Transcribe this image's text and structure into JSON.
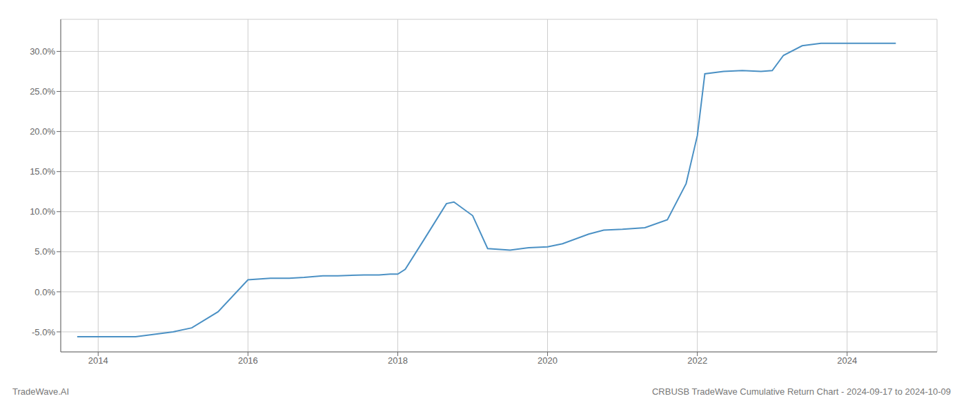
{
  "chart_data": {
    "type": "line",
    "x": [
      2013.72,
      2014.0,
      2014.5,
      2015.0,
      2015.25,
      2015.6,
      2016.0,
      2016.3,
      2016.55,
      2016.75,
      2017.0,
      2017.2,
      2017.55,
      2017.75,
      2017.9,
      2018.0,
      2018.1,
      2018.35,
      2018.65,
      2018.75,
      2019.0,
      2019.2,
      2019.5,
      2019.75,
      2020.0,
      2020.2,
      2020.55,
      2020.75,
      2021.0,
      2021.3,
      2021.6,
      2021.85,
      2022.0,
      2022.1,
      2022.35,
      2022.6,
      2022.85,
      2023.0,
      2023.15,
      2023.4,
      2023.65,
      2023.85,
      2024.0,
      2024.3,
      2024.65
    ],
    "values": [
      -5.6,
      -5.6,
      -5.6,
      -5.0,
      -4.5,
      -2.5,
      1.5,
      1.7,
      1.7,
      1.8,
      2.0,
      2.0,
      2.1,
      2.1,
      2.2,
      2.2,
      2.8,
      6.5,
      11.0,
      11.2,
      9.5,
      5.4,
      5.2,
      5.5,
      5.6,
      6.0,
      7.2,
      7.7,
      7.8,
      8.0,
      9.0,
      13.5,
      19.5,
      27.2,
      27.5,
      27.6,
      27.5,
      27.6,
      29.5,
      30.7,
      31.0,
      31.0,
      31.0,
      31.0,
      31.0
    ],
    "color": "#4a90c4",
    "xlim": [
      2013.5,
      2025.2
    ],
    "ylim": [
      -7.5,
      34.0
    ],
    "xticks": [
      2014,
      2016,
      2018,
      2020,
      2022,
      2024
    ],
    "yticks": [
      {
        "value": -5.0,
        "label": "-5.0%"
      },
      {
        "value": 0.0,
        "label": "0.0%"
      },
      {
        "value": 5.0,
        "label": "5.0%"
      },
      {
        "value": 10.0,
        "label": "10.0%"
      },
      {
        "value": 15.0,
        "label": "15.0%"
      },
      {
        "value": 20.0,
        "label": "20.0%"
      },
      {
        "value": 25.0,
        "label": "25.0%"
      },
      {
        "value": 30.0,
        "label": "30.0%"
      }
    ],
    "grid": true,
    "annotations": [
      "TradeWave.AI",
      "CRBUSB TradeWave Cumulative Return Chart - 2024-09-17 to 2024-10-09"
    ]
  }
}
